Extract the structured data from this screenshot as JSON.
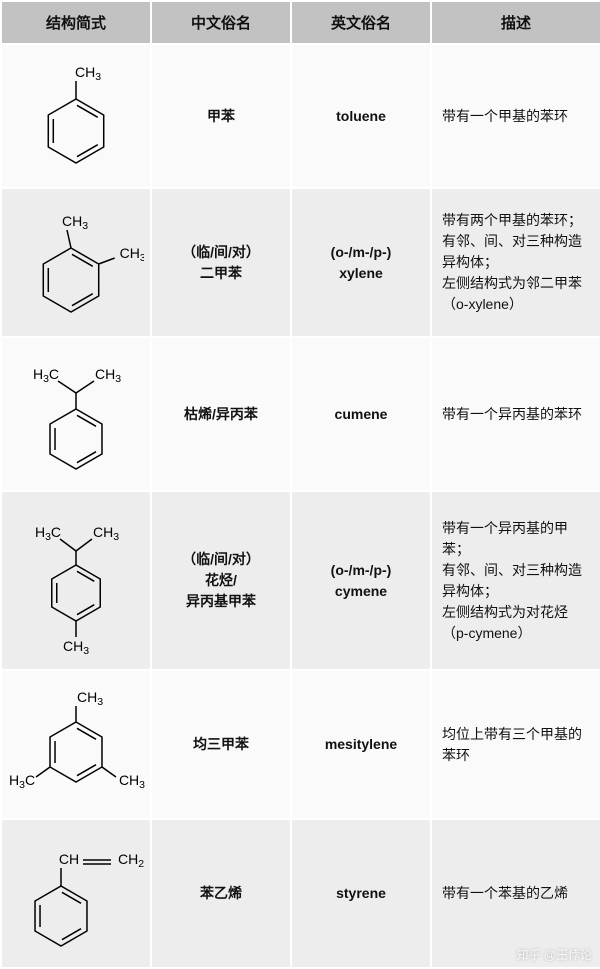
{
  "headers": {
    "structure": "结构简式",
    "cn_name": "中文俗名",
    "en_name": "英文俗名",
    "desc": "描述"
  },
  "rows": [
    {
      "svg": "toluene",
      "cn": "甲苯",
      "en": "toluene",
      "desc": "带有一个甲基的苯环"
    },
    {
      "svg": "xylene",
      "cn": "（临/间/对）\n二甲苯",
      "en": "(o-/m-/p-)\nxylene",
      "desc": "带有两个甲基的苯环；\n有邻、间、对三种构造异构体；\n左侧结构式为邻二甲苯（o-xylene）"
    },
    {
      "svg": "cumene",
      "cn": "枯烯/异丙苯",
      "en": "cumene",
      "desc": "带有一个异丙基的苯环"
    },
    {
      "svg": "cymene",
      "cn": "（临/间/对）\n花烃/\n异丙基甲苯",
      "en": "(o-/m-/p-)\ncymene",
      "desc": "带有一个异丙基的甲苯；\n有邻、间、对三种构造异构体；\n左侧结构式为对花烃（p-cymene）"
    },
    {
      "svg": "mesitylene",
      "cn": "均三甲苯",
      "en": "mesitylene",
      "desc": "均位上带有三个甲基的苯环"
    },
    {
      "svg": "styrene",
      "cn": "苯乙烯",
      "en": "styrene",
      "desc": "带有一个苯基的乙烯"
    }
  ],
  "labels": {
    "CH3": "CH₃",
    "H3C": "H₃C",
    "CH": "CH",
    "CH2": "CH₂"
  },
  "watermark": "知乎 @王悖论",
  "colors": {
    "header_bg": "#c2c2c2",
    "row_odd": "#fafafa",
    "row_even": "#ededed",
    "border": "#ffffff",
    "stroke": "#000000"
  }
}
